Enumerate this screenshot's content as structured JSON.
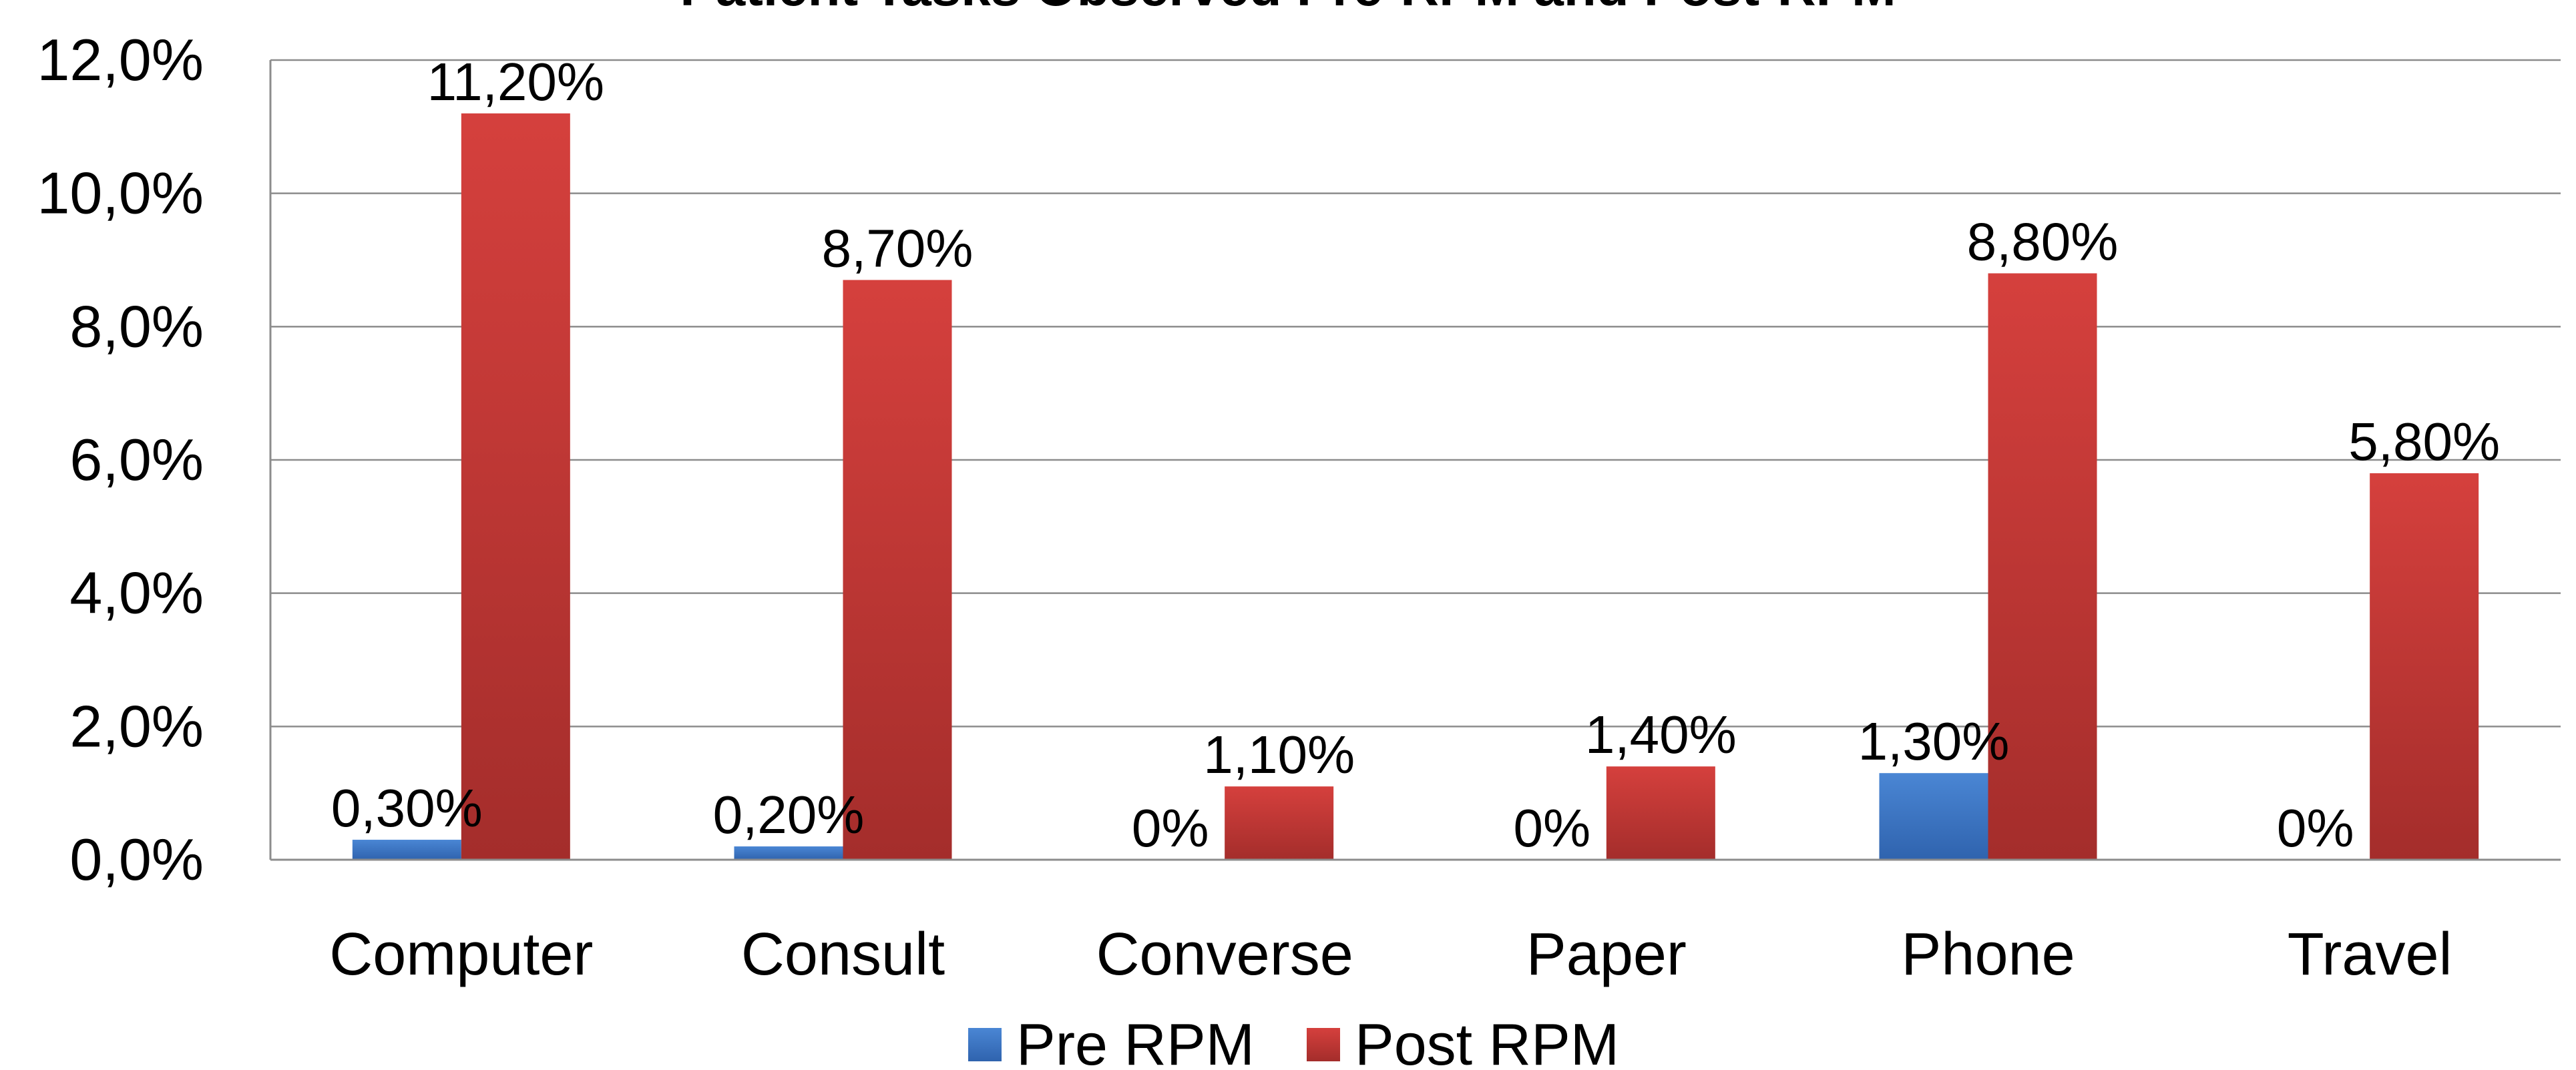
{
  "chart_data": {
    "type": "bar",
    "title": "Patient Tasks Observed Pre-RPM and Post-RPM",
    "categories": [
      "Computer",
      "Consult",
      "Converse",
      "Paper",
      "Phone",
      "Travel"
    ],
    "series": [
      {
        "name": "Pre RPM",
        "values": [
          0.3,
          0.2,
          0,
          0,
          1.3,
          0
        ],
        "labels": [
          "0,30%",
          "0,20%",
          "0%",
          "0%",
          "1,30%",
          "0%"
        ],
        "color": "#3B75C4"
      },
      {
        "name": "Post RPM",
        "values": [
          11.2,
          8.7,
          1.1,
          1.4,
          8.8,
          5.8
        ],
        "labels": [
          "11,20%",
          "8,70%",
          "1,10%",
          "1,40%",
          "8,80%",
          "5,80%"
        ],
        "color": "#C23A36"
      }
    ],
    "ylim": [
      0,
      12
    ],
    "yticks": [
      0,
      2,
      4,
      6,
      8,
      10,
      12
    ],
    "ytick_labels": [
      "0,0%",
      "2,0%",
      "4,0%",
      "6,0%",
      "8,0%",
      "10,0%",
      "12,0%"
    ],
    "xlabel": "",
    "ylabel": "",
    "grid": true,
    "legend_position": "bottom"
  }
}
